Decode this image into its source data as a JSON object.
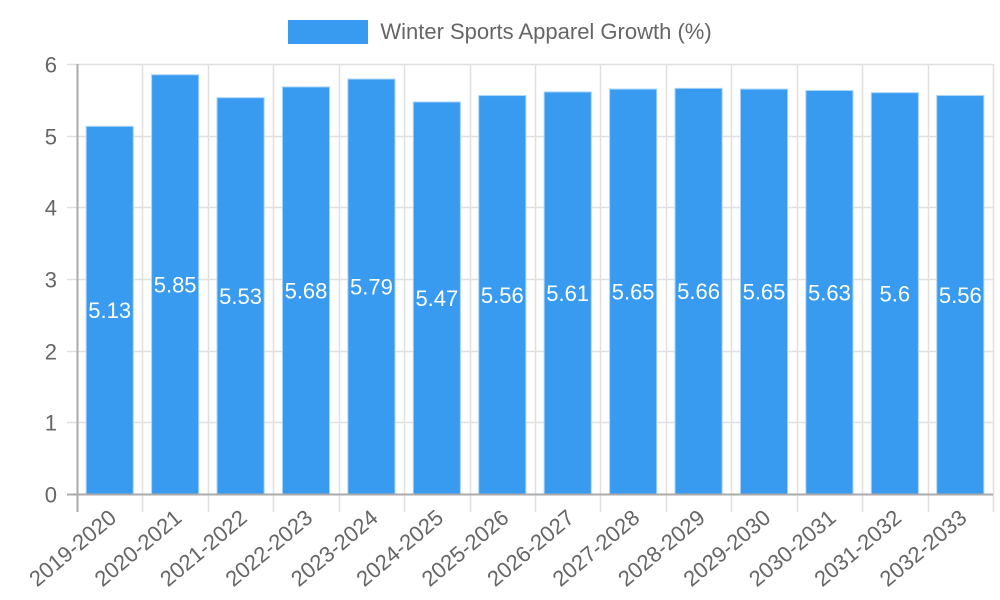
{
  "legend": {
    "label": "Winter Sports Apparel Growth (%)",
    "swatch_color": "#389bf0"
  },
  "colors": {
    "bar_fill": "#389bf0",
    "bar_border": "#a8d4fa",
    "grid": "#e0e0e0",
    "axis": "#aaaaaa",
    "tick_text": "#666666",
    "value_label": "#ffffff"
  },
  "chart_data": {
    "type": "bar",
    "title": "",
    "xlabel": "",
    "ylabel": "",
    "ylim": [
      0,
      6
    ],
    "yticks": [
      0,
      1,
      2,
      3,
      4,
      5,
      6
    ],
    "grid": true,
    "legend_position": "top",
    "categories": [
      "2019-2020",
      "2020-2021",
      "2021-2022",
      "2022-2023",
      "2023-2024",
      "2024-2025",
      "2025-2026",
      "2026-2027",
      "2027-2028",
      "2028-2029",
      "2029-2030",
      "2030-2031",
      "2031-2032",
      "2032-2033"
    ],
    "series": [
      {
        "name": "Winter Sports Apparel Growth (%)",
        "values": [
          5.13,
          5.85,
          5.53,
          5.68,
          5.79,
          5.47,
          5.56,
          5.61,
          5.65,
          5.66,
          5.65,
          5.63,
          5.6,
          5.56
        ]
      }
    ],
    "data_labels": [
      "5.13",
      "5.85",
      "5.53",
      "5.68",
      "5.79",
      "5.47",
      "5.56",
      "5.61",
      "5.65",
      "5.66",
      "5.65",
      "5.63",
      "5.6",
      "5.56"
    ]
  }
}
